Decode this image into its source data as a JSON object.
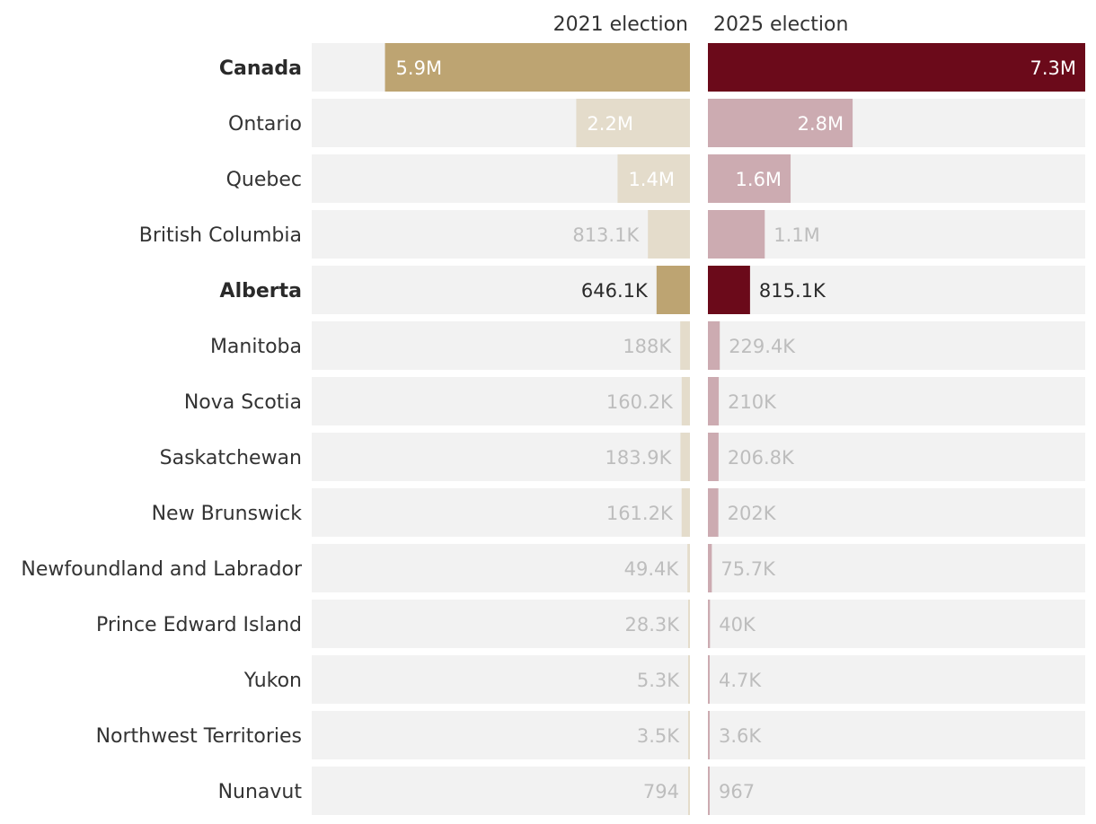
{
  "chart_data": {
    "type": "bar",
    "orientation": "horizontal",
    "layout": "mirrored-two-panel",
    "series": [
      {
        "name": "2021 election",
        "color": "#bda472",
        "muted_color": "#e4dccb",
        "values": [
          5900000,
          2200000,
          1400000,
          813100,
          646100,
          188000,
          160200,
          183900,
          161200,
          49400,
          28300,
          5300,
          3500,
          794
        ],
        "labels": [
          "5.9M",
          "2.2M",
          "1.4M",
          "813.1K",
          "646.1K",
          "188K",
          "160.2K",
          "183.9K",
          "161.2K",
          "49.4K",
          "28.3K",
          "5.3K",
          "3.5K",
          "794"
        ]
      },
      {
        "name": "2025 election",
        "color": "#6b0a1a",
        "muted_color": "#ccabb1",
        "values": [
          7300000,
          2800000,
          1600000,
          1100000,
          815100,
          229400,
          210000,
          206800,
          202000,
          75700,
          40000,
          4700,
          3600,
          967
        ],
        "labels": [
          "7.3M",
          "2.8M",
          "1.6M",
          "1.1M",
          "815.1K",
          "229.4K",
          "210K",
          "206.8K",
          "202K",
          "75.7K",
          "40K",
          "4.7K",
          "3.6K",
          "967"
        ]
      }
    ],
    "categories": [
      "Canada",
      "Ontario",
      "Quebec",
      "British Columbia",
      "Alberta",
      "Manitoba",
      "Nova Scotia",
      "Saskatchewan",
      "New Brunswick",
      "Newfoundland and Labrador",
      "Prince Edward Island",
      "Yukon",
      "Northwest Territories",
      "Nunavut"
    ],
    "highlighted": [
      "Canada",
      "Alberta"
    ],
    "xlim": [
      0,
      7300000
    ],
    "track_color": "#f2f2f2",
    "title": "",
    "xlabel": "",
    "ylabel": ""
  }
}
